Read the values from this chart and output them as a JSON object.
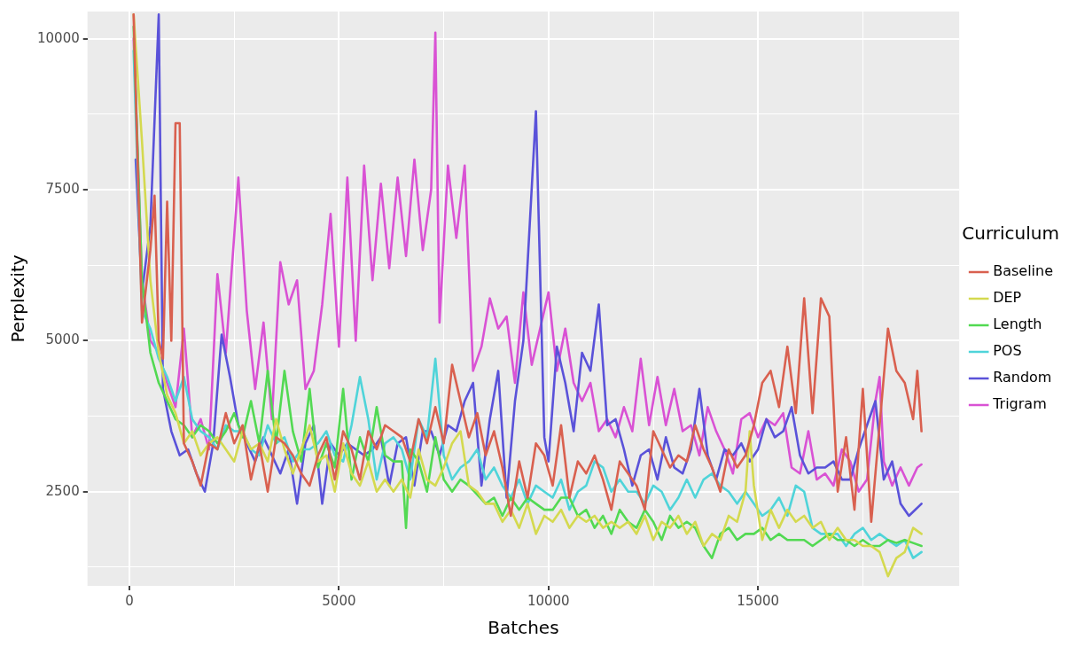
{
  "chart_data": {
    "type": "line",
    "xlabel": "Batches",
    "ylabel": "Perplexity",
    "legend_title": "Curriculum",
    "legend": "right",
    "grid": true,
    "marker": "none",
    "xlim": [
      -1000,
      19800
    ],
    "ylim": [
      940,
      10450
    ],
    "xticks": [
      0,
      {
        "value": 2500,
        "label": null
      },
      5000,
      {
        "value": 7500,
        "label": null
      },
      10000,
      {
        "value": 12500,
        "label": null
      },
      15000,
      {
        "value": 17500,
        "label": null
      }
    ],
    "yticks": [
      {
        "value": 1250,
        "label": null
      },
      2500,
      {
        "value": 3750,
        "label": null
      },
      5000,
      {
        "value": 6250,
        "label": null
      },
      7500,
      {
        "value": 8750,
        "label": null
      },
      10000
    ],
    "series": [
      {
        "name": "Baseline",
        "color": "#d9604f",
        "x": [
          100,
          300,
          500,
          600,
          700,
          800,
          900,
          1000,
          1100,
          1200,
          1300,
          1500,
          1700,
          1900,
          2100,
          2300,
          2500,
          2700,
          2900,
          3100,
          3300,
          3500,
          3700,
          3900,
          4100,
          4300,
          4500,
          4700,
          4900,
          5100,
          5300,
          5500,
          5700,
          5900,
          6100,
          6300,
          6500,
          6700,
          6900,
          7100,
          7300,
          7500,
          7700,
          7900,
          8100,
          8300,
          8500,
          8700,
          8900,
          9100,
          9300,
          9500,
          9700,
          9900,
          10100,
          10300,
          10500,
          10700,
          10900,
          11100,
          11300,
          11500,
          11700,
          11900,
          12100,
          12300,
          12500,
          12700,
          12900,
          13100,
          13300,
          13500,
          13700,
          13900,
          14100,
          14300,
          14500,
          14700,
          14900,
          15100,
          15300,
          15500,
          15700,
          15900,
          16100,
          16300,
          16500,
          16700,
          16900,
          17100,
          17300,
          17500,
          17700,
          17900,
          18100,
          18300,
          18500,
          18700,
          18800,
          18900
        ],
        "values": [
          10400,
          5300,
          6500,
          7400,
          5000,
          4700,
          7300,
          5000,
          8600,
          8600,
          3300,
          3000,
          2600,
          3300,
          3200,
          3800,
          3300,
          3600,
          2700,
          3300,
          2500,
          3400,
          3300,
          3100,
          2800,
          2600,
          3100,
          3400,
          2700,
          3500,
          3200,
          2700,
          3500,
          3200,
          3600,
          3500,
          3400,
          3000,
          3700,
          3300,
          3900,
          3300,
          4600,
          4000,
          3400,
          3800,
          3100,
          3500,
          2900,
          2100,
          3000,
          2400,
          3300,
          3100,
          2600,
          3600,
          2400,
          3000,
          2800,
          3100,
          2700,
          2200,
          3000,
          2800,
          2600,
          2200,
          3500,
          3200,
          2900,
          3100,
          3000,
          3600,
          3200,
          2900,
          2500,
          3200,
          2900,
          3100,
          3600,
          4300,
          4500,
          3900,
          4900,
          3800,
          5700,
          3800,
          5700,
          5400,
          2500,
          3400,
          2200,
          4200,
          2000,
          3600,
          5200,
          4500,
          4300,
          3700,
          4500,
          3500
        ]
      },
      {
        "name": "DEP",
        "color": "#d4d94f",
        "x": [
          100,
          300,
          500,
          700,
          900,
          1100,
          1300,
          1500,
          1700,
          1900,
          2100,
          2300,
          2500,
          2700,
          2900,
          3100,
          3300,
          3500,
          3700,
          3900,
          4100,
          4300,
          4500,
          4700,
          4900,
          5100,
          5300,
          5500,
          5700,
          5900,
          6100,
          6300,
          6500,
          6700,
          6900,
          7100,
          7300,
          7500,
          7700,
          7900,
          8100,
          8300,
          8500,
          8700,
          8900,
          9100,
          9300,
          9500,
          9700,
          9900,
          10100,
          10300,
          10500,
          10700,
          10900,
          11100,
          11300,
          11500,
          11700,
          11900,
          12100,
          12300,
          12500,
          12700,
          12900,
          13100,
          13300,
          13500,
          13700,
          13900,
          14100,
          14300,
          14500,
          14700,
          14800,
          14900,
          15100,
          15300,
          15500,
          15700,
          15900,
          16100,
          16300,
          16500,
          16700,
          16900,
          17100,
          17300,
          17500,
          17700,
          17900,
          18100,
          18300,
          18500,
          18700,
          18900
        ],
        "values": [
          10400,
          8300,
          6000,
          4800,
          4100,
          3800,
          3300,
          3500,
          3100,
          3300,
          3400,
          3200,
          3000,
          3500,
          3200,
          3300,
          3000,
          3700,
          3200,
          2800,
          3200,
          3600,
          3000,
          3100,
          2500,
          3300,
          2800,
          2600,
          3000,
          2500,
          2700,
          2500,
          2700,
          2400,
          3200,
          2700,
          2600,
          2900,
          3300,
          3500,
          2600,
          2500,
          2300,
          2300,
          2000,
          2200,
          1900,
          2300,
          1800,
          2100,
          2000,
          2200,
          1900,
          2100,
          2000,
          2100,
          1900,
          2000,
          1900,
          2000,
          1800,
          2100,
          1700,
          2000,
          1900,
          2100,
          1800,
          2000,
          1600,
          1800,
          1700,
          2100,
          2000,
          2500,
          3500,
          2600,
          1700,
          2200,
          1900,
          2200,
          2000,
          2100,
          1900,
          2000,
          1700,
          1900,
          1700,
          1700,
          1600,
          1600,
          1500,
          1100,
          1400,
          1500,
          1900,
          1800
        ]
      },
      {
        "name": "Length",
        "color": "#52d952",
        "x": [
          100,
          300,
          500,
          700,
          900,
          1100,
          1300,
          1500,
          1700,
          1900,
          2100,
          2300,
          2500,
          2700,
          2900,
          3100,
          3300,
          3500,
          3700,
          3900,
          4100,
          4300,
          4500,
          4700,
          4900,
          5100,
          5300,
          5500,
          5700,
          5900,
          6100,
          6300,
          6500,
          6600,
          6700,
          6900,
          7100,
          7300,
          7500,
          7700,
          7900,
          8100,
          8300,
          8500,
          8700,
          8900,
          9100,
          9300,
          9500,
          9700,
          9900,
          10100,
          10300,
          10500,
          10700,
          10900,
          11100,
          11300,
          11500,
          11700,
          11900,
          12100,
          12300,
          12500,
          12700,
          12900,
          13100,
          13300,
          13500,
          13700,
          13900,
          14100,
          14300,
          14500,
          14700,
          14900,
          15100,
          15300,
          15500,
          15700,
          15900,
          16100,
          16300,
          16500,
          16700,
          16900,
          17100,
          17300,
          17500,
          17700,
          17900,
          18100,
          18300,
          18500,
          18700,
          18900
        ],
        "values": [
          10200,
          6000,
          4800,
          4300,
          4000,
          3700,
          3600,
          3400,
          3600,
          3500,
          3300,
          3500,
          3800,
          3400,
          4000,
          3300,
          4500,
          3300,
          4500,
          3500,
          3000,
          4200,
          2900,
          3300,
          2900,
          4200,
          2700,
          3400,
          3000,
          3900,
          3100,
          3000,
          3000,
          1900,
          3200,
          3000,
          2500,
          3400,
          2700,
          2500,
          2700,
          2600,
          2450,
          2300,
          2400,
          2100,
          2400,
          2200,
          2400,
          2300,
          2200,
          2200,
          2400,
          2400,
          2100,
          2200,
          1900,
          2100,
          1800,
          2200,
          2000,
          1900,
          2200,
          2000,
          1700,
          2100,
          1900,
          2000,
          1900,
          1600,
          1400,
          1800,
          1900,
          1700,
          1800,
          1800,
          1900,
          1700,
          1800,
          1700,
          1700,
          1700,
          1600,
          1700,
          1800,
          1700,
          1700,
          1600,
          1700,
          1600,
          1600,
          1700,
          1650,
          1700,
          1650,
          1600
        ]
      },
      {
        "name": "POS",
        "color": "#4fd4d9",
        "x": [
          100,
          300,
          500,
          700,
          900,
          1100,
          1300,
          1500,
          1700,
          1900,
          2100,
          2300,
          2500,
          2700,
          2900,
          3100,
          3300,
          3500,
          3700,
          3900,
          4100,
          4300,
          4500,
          4700,
          4900,
          5100,
          5300,
          5500,
          5700,
          5900,
          6100,
          6300,
          6500,
          6700,
          6900,
          7100,
          7300,
          7500,
          7700,
          7900,
          8100,
          8300,
          8500,
          8700,
          8900,
          9100,
          9300,
          9500,
          9700,
          9900,
          10100,
          10300,
          10500,
          10700,
          10900,
          11100,
          11300,
          11500,
          11700,
          11900,
          12100,
          12300,
          12500,
          12700,
          12900,
          13100,
          13300,
          13500,
          13700,
          13900,
          14100,
          14300,
          14500,
          14700,
          14900,
          15100,
          15300,
          15500,
          15700,
          15900,
          16100,
          16300,
          16500,
          16700,
          16900,
          17100,
          17300,
          17500,
          17700,
          17900,
          18100,
          18300,
          18500,
          18700,
          18900
        ],
        "values": [
          9800,
          5500,
          5200,
          4700,
          4400,
          4000,
          4400,
          3700,
          3500,
          3400,
          3200,
          3600,
          3500,
          3500,
          3200,
          3100,
          3600,
          3300,
          3400,
          3000,
          3200,
          3200,
          3300,
          3500,
          3100,
          3000,
          3600,
          4400,
          3700,
          2700,
          3300,
          3400,
          3200,
          2700,
          3700,
          3400,
          4700,
          3100,
          2700,
          2900,
          3000,
          3200,
          2700,
          2900,
          2600,
          2400,
          2700,
          2300,
          2600,
          2500,
          2400,
          2700,
          2200,
          2500,
          2600,
          3000,
          2900,
          2500,
          2700,
          2500,
          2500,
          2300,
          2600,
          2500,
          2200,
          2400,
          2700,
          2400,
          2700,
          2800,
          2600,
          2500,
          2300,
          2500,
          2300,
          2100,
          2200,
          2400,
          2100,
          2600,
          2500,
          1900,
          1800,
          1800,
          1800,
          1600,
          1800,
          1900,
          1700,
          1800,
          1700,
          1600,
          1700,
          1400,
          1500
        ]
      },
      {
        "name": "Random",
        "color": "#5a52d9",
        "x": [
          150,
          300,
          500,
          700,
          800,
          1000,
          1200,
          1400,
          1600,
          1800,
          2000,
          2200,
          2400,
          2600,
          2800,
          3000,
          3200,
          3400,
          3600,
          3800,
          4000,
          4200,
          4400,
          4600,
          4800,
          5000,
          5200,
          5400,
          5600,
          5800,
          6000,
          6200,
          6400,
          6600,
          6800,
          7000,
          7200,
          7400,
          7600,
          7800,
          8000,
          8200,
          8400,
          8600,
          8800,
          9000,
          9200,
          9400,
          9700,
          9900,
          10000,
          10200,
          10400,
          10600,
          10800,
          11000,
          11200,
          11400,
          11600,
          11800,
          12000,
          12200,
          12400,
          12600,
          12800,
          13000,
          13200,
          13400,
          13600,
          13800,
          14000,
          14200,
          14400,
          14600,
          14800,
          15000,
          15200,
          15400,
          15600,
          15800,
          16000,
          16200,
          16400,
          16600,
          16800,
          17000,
          17200,
          17400,
          17600,
          17800,
          18000,
          18200,
          18400,
          18600,
          18900
        ],
        "values": [
          8000,
          5800,
          6900,
          10400,
          4200,
          3500,
          3100,
          3200,
          2800,
          2500,
          3300,
          5100,
          4400,
          3600,
          3300,
          3000,
          3400,
          3100,
          2800,
          3200,
          2300,
          3300,
          3600,
          2300,
          3300,
          3100,
          3300,
          3200,
          3100,
          3200,
          3400,
          2600,
          3300,
          3400,
          2600,
          3500,
          3500,
          3100,
          3600,
          3500,
          4000,
          4300,
          2600,
          3700,
          4500,
          2400,
          4000,
          5000,
          8800,
          3400,
          3000,
          4900,
          4300,
          3500,
          4800,
          4500,
          5600,
          3600,
          3700,
          3200,
          2600,
          3100,
          3200,
          2700,
          3400,
          2900,
          2800,
          3200,
          4200,
          3100,
          2700,
          3200,
          3100,
          3300,
          3000,
          3200,
          3700,
          3400,
          3500,
          3900,
          3100,
          2800,
          2900,
          2900,
          3000,
          2700,
          2700,
          3200,
          3600,
          4000,
          2700,
          3000,
          2300,
          2100,
          2300
        ]
      },
      {
        "name": "Trigram",
        "color": "#d952d4",
        "x": [
          100,
          300,
          500,
          700,
          900,
          1100,
          1300,
          1500,
          1700,
          1900,
          2100,
          2300,
          2600,
          2800,
          3000,
          3200,
          3400,
          3600,
          3800,
          4000,
          4200,
          4400,
          4600,
          4800,
          5000,
          5200,
          5400,
          5600,
          5800,
          6000,
          6200,
          6400,
          6600,
          6800,
          7000,
          7200,
          7300,
          7400,
          7600,
          7800,
          8000,
          8200,
          8400,
          8600,
          8800,
          9000,
          9200,
          9400,
          9600,
          9800,
          10000,
          10200,
          10400,
          10600,
          10800,
          11000,
          11200,
          11400,
          11600,
          11800,
          12000,
          12200,
          12400,
          12600,
          12800,
          13000,
          13200,
          13400,
          13600,
          13800,
          14000,
          14200,
          14400,
          14600,
          14800,
          15000,
          15200,
          15400,
          15600,
          15800,
          16000,
          16200,
          16400,
          16600,
          16800,
          17000,
          17200,
          17400,
          17600,
          17800,
          17900,
          18000,
          18200,
          18400,
          18600,
          18800,
          18900
        ],
        "values": [
          10000,
          6000,
          5000,
          4800,
          4300,
          3900,
          5200,
          3400,
          3700,
          3200,
          6100,
          4800,
          7700,
          5500,
          4200,
          5300,
          3700,
          6300,
          5600,
          6000,
          4200,
          4500,
          5600,
          7100,
          4900,
          7700,
          5000,
          7900,
          6000,
          7600,
          6200,
          7700,
          6400,
          8000,
          6500,
          7500,
          10100,
          5300,
          7900,
          6700,
          7900,
          4500,
          4900,
          5700,
          5200,
          5400,
          4300,
          5800,
          4600,
          5200,
          5800,
          4500,
          5200,
          4300,
          4000,
          4300,
          3500,
          3700,
          3400,
          3900,
          3500,
          4700,
          3600,
          4400,
          3600,
          4200,
          3500,
          3600,
          3100,
          3900,
          3500,
          3200,
          2800,
          3700,
          3800,
          3400,
          3700,
          3600,
          3800,
          2900,
          2800,
          3500,
          2700,
          2800,
          2600,
          3200,
          3000,
          2500,
          2700,
          4000,
          4400,
          3000,
          2600,
          2900,
          2600,
          2900,
          2950
        ]
      }
    ]
  }
}
